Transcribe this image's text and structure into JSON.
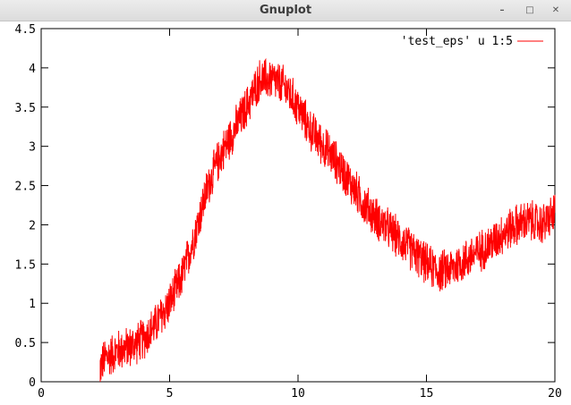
{
  "window": {
    "title": "Gnuplot",
    "minimize_label": "–",
    "maximize_label": "□",
    "close_label": "✕"
  },
  "colors": {
    "series": "#ff0000",
    "axis": "#000000",
    "titlebar": "#e4e4e4"
  },
  "chart_data": {
    "type": "line",
    "title": "",
    "xlabel": "",
    "ylabel": "",
    "xlim": [
      0,
      20
    ],
    "ylim": [
      0,
      4.5
    ],
    "xticks": [
      "0",
      "5",
      "10",
      "15",
      "20"
    ],
    "yticks": [
      "0",
      "0.5",
      "1",
      "1.5",
      "2",
      "2.5",
      "3",
      "3.5",
      "4",
      "4.5"
    ],
    "grid": false,
    "legend_position": "top-right",
    "series": [
      {
        "name": "'test_eps' u 1:5",
        "color": "#ff0000",
        "noise_amplitude": 0.3,
        "x": [
          2.3,
          2.5,
          3.0,
          3.5,
          4.0,
          4.5,
          5.0,
          5.5,
          6.0,
          6.5,
          7.0,
          7.5,
          8.0,
          8.5,
          9.0,
          9.5,
          10.0,
          10.5,
          11.0,
          11.5,
          12.0,
          12.5,
          13.0,
          13.5,
          14.0,
          14.5,
          15.0,
          15.5,
          16.0,
          16.5,
          17.0,
          17.5,
          18.0,
          18.5,
          19.0,
          19.5,
          20.0
        ],
        "y": [
          0.2,
          0.3,
          0.4,
          0.45,
          0.55,
          0.75,
          1.0,
          1.35,
          1.9,
          2.5,
          2.9,
          3.2,
          3.5,
          3.85,
          3.85,
          3.75,
          3.5,
          3.2,
          3.0,
          2.8,
          2.55,
          2.3,
          2.1,
          1.95,
          1.8,
          1.65,
          1.5,
          1.4,
          1.45,
          1.55,
          1.65,
          1.75,
          1.9,
          2.0,
          2.05,
          2.0,
          2.15
        ]
      }
    ]
  }
}
